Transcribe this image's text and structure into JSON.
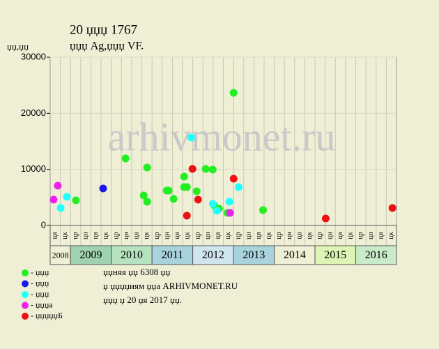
{
  "chart_data": {
    "type": "scatter",
    "title": "20 џџџ 1767",
    "subtitle": "џџџ Ag,џџџ VF.",
    "y_label": "џџ,џџ",
    "watermark": "arhivmonet.ru",
    "xlim": [
      0,
      34
    ],
    "ylim": [
      0,
      30000
    ],
    "yticks": [
      0,
      10000,
      20000,
      30000
    ],
    "quarters": [
      "ця",
      "цк",
      "цр",
      "цн",
      "ця",
      "цк",
      "цр",
      "цн",
      "ця",
      "цк",
      "цр",
      "цн",
      "ця",
      "цк",
      "цр",
      "цн",
      "ця",
      "цк",
      "цр",
      "цн",
      "ця",
      "цк",
      "цр",
      "цн",
      "ця",
      "цк",
      "цр",
      "цн",
      "ця",
      "цк",
      "цр",
      "цн",
      "ця",
      "цк"
    ],
    "years": [
      {
        "label": "2008",
        "quarters": 2,
        "color": "#efefd6"
      },
      {
        "label": "2009",
        "quarters": 4,
        "color": "#9fd2ae"
      },
      {
        "label": "2010",
        "quarters": 4,
        "color": "#b6e2c0"
      },
      {
        "label": "2011",
        "quarters": 4,
        "color": "#a9d3dc"
      },
      {
        "label": "2012",
        "quarters": 4,
        "color": "#cfe6ef"
      },
      {
        "label": "2013",
        "quarters": 4,
        "color": "#a9d3dc"
      },
      {
        "label": "2014",
        "quarters": 4,
        "color": "#efefd6"
      },
      {
        "label": "2015",
        "quarters": 4,
        "color": "#dcf5b4"
      },
      {
        "label": "2016",
        "quarters": 4,
        "color": "#c8ebc8"
      }
    ],
    "series": [
      {
        "name": "- џџџ",
        "color": "#22ee22",
        "x": [
          2.53,
          7.4,
          9.18,
          9.52,
          9.52,
          11.44,
          11.64,
          12.12,
          13.15,
          13.15,
          13.42,
          14.38,
          15.27,
          15.96,
          16.1,
          16.58,
          18.01,
          20.9,
          17.4
        ],
        "values": [
          4480,
          11950,
          5350,
          4230,
          10330,
          6220,
          6220,
          4730,
          8710,
          6850,
          6850,
          6100,
          10080,
          9960,
          3610,
          2990,
          23650,
          2740,
          2240
        ]
      },
      {
        "name": "- џџџ",
        "color": "#1a1aee",
        "x": [
          5.2
        ],
        "values": [
          6600
        ]
      },
      {
        "name": "- џџџ",
        "color": "#22ffff",
        "x": [
          1.64,
          1.03,
          13.84,
          15.96,
          16.37,
          17.6,
          18.5
        ],
        "values": [
          5100,
          3110,
          15680,
          3860,
          2610,
          4230,
          6850
        ]
      },
      {
        "name": "- џџџа",
        "color": "#ee22ee",
        "x": [
          0.34,
          0.75,
          17.67
        ],
        "values": [
          4600,
          7100,
          2240
        ]
      },
      {
        "name": "- џџџџџБ",
        "color": "#ee1111",
        "x": [
          13.42,
          13.97,
          14.52,
          18.01,
          27.05,
          33.6
        ],
        "values": [
          1740,
          10080,
          4600,
          8340,
          1240,
          3110
        ]
      }
    ]
  },
  "notes": [
    "џџняя џџ 6308 џџ",
    "џ џџџџиям џџа ARHIVMONET.RU",
    "џџџ џ 20 џя 2017 џџ."
  ]
}
